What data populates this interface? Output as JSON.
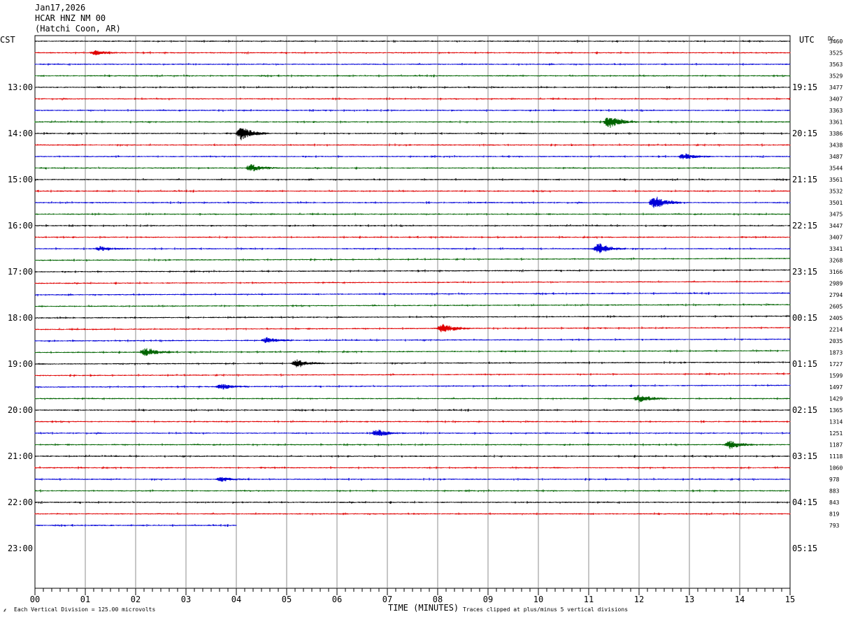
{
  "header": {
    "date": "Jan17,2026",
    "station": "HCAR HNZ NM 00",
    "location": "(Hatchi Coon, AR)"
  },
  "chart_data": {
    "type": "line",
    "title": "Jan17,2026",
    "xlabel": "TIME (MINUTES)",
    "left_axis_label": "CST",
    "right_axis_label": "UTC",
    "dc_label": "DC",
    "xlim": [
      0,
      15
    ],
    "x_ticks": [
      "00",
      "01",
      "02",
      "03",
      "04",
      "05",
      "06",
      "07",
      "08",
      "09",
      "10",
      "11",
      "12",
      "13",
      "14",
      "15"
    ],
    "hour_labels_left": [
      "13:00",
      "14:00",
      "15:00",
      "16:00",
      "17:00",
      "18:00",
      "19:00",
      "20:00",
      "21:00",
      "22:00",
      "23:00"
    ],
    "hour_labels_right": [
      "19:15",
      "20:15",
      "21:15",
      "22:15",
      "23:15",
      "00:15",
      "01:15",
      "02:15",
      "03:15",
      "04:15",
      "05:15"
    ],
    "trace_colors": [
      "#000000",
      "#e00000",
      "#0000d8",
      "#006400"
    ],
    "dc_offsets": [
      3460,
      3525,
      3563,
      3529,
      3477,
      3407,
      3363,
      3361,
      3386,
      3438,
      3487,
      3544,
      3561,
      3532,
      3501,
      3475,
      3447,
      3407,
      3341,
      3268,
      3166,
      2989,
      2794,
      2605,
      2405,
      2214,
      2035,
      1873,
      1727,
      1599,
      1497,
      1429,
      1365,
      1314,
      1251,
      1187,
      1118,
      1060,
      978,
      883,
      843,
      819,
      793
    ],
    "last_trace_end_minute": 4.0,
    "events": [
      {
        "trace": 1,
        "minute": 1.2,
        "amp": 3
      },
      {
        "trace": 7,
        "minute": 11.4,
        "amp": 9
      },
      {
        "trace": 8,
        "minute": 4.1,
        "amp": 9
      },
      {
        "trace": 10,
        "minute": 12.9,
        "amp": 4
      },
      {
        "trace": 11,
        "minute": 4.3,
        "amp": 5
      },
      {
        "trace": 14,
        "minute": 12.3,
        "amp": 9
      },
      {
        "trace": 18,
        "minute": 11.2,
        "amp": 8
      },
      {
        "trace": 18,
        "minute": 1.3,
        "amp": 3
      },
      {
        "trace": 25,
        "minute": 8.1,
        "amp": 6
      },
      {
        "trace": 26,
        "minute": 4.6,
        "amp": 4
      },
      {
        "trace": 27,
        "minute": 2.2,
        "amp": 6
      },
      {
        "trace": 28,
        "minute": 5.2,
        "amp": 5
      },
      {
        "trace": 30,
        "minute": 3.7,
        "amp": 4
      },
      {
        "trace": 31,
        "minute": 12.0,
        "amp": 5
      },
      {
        "trace": 34,
        "minute": 6.8,
        "amp": 5
      },
      {
        "trace": 35,
        "minute": 13.8,
        "amp": 6
      },
      {
        "trace": 38,
        "minute": 3.7,
        "amp": 3
      }
    ]
  },
  "footer": {
    "scale_note": "Each Vertical Division =  125.00 microvolts",
    "clip_note": "Traces clipped at plus/minus 5 vertical divisions"
  }
}
